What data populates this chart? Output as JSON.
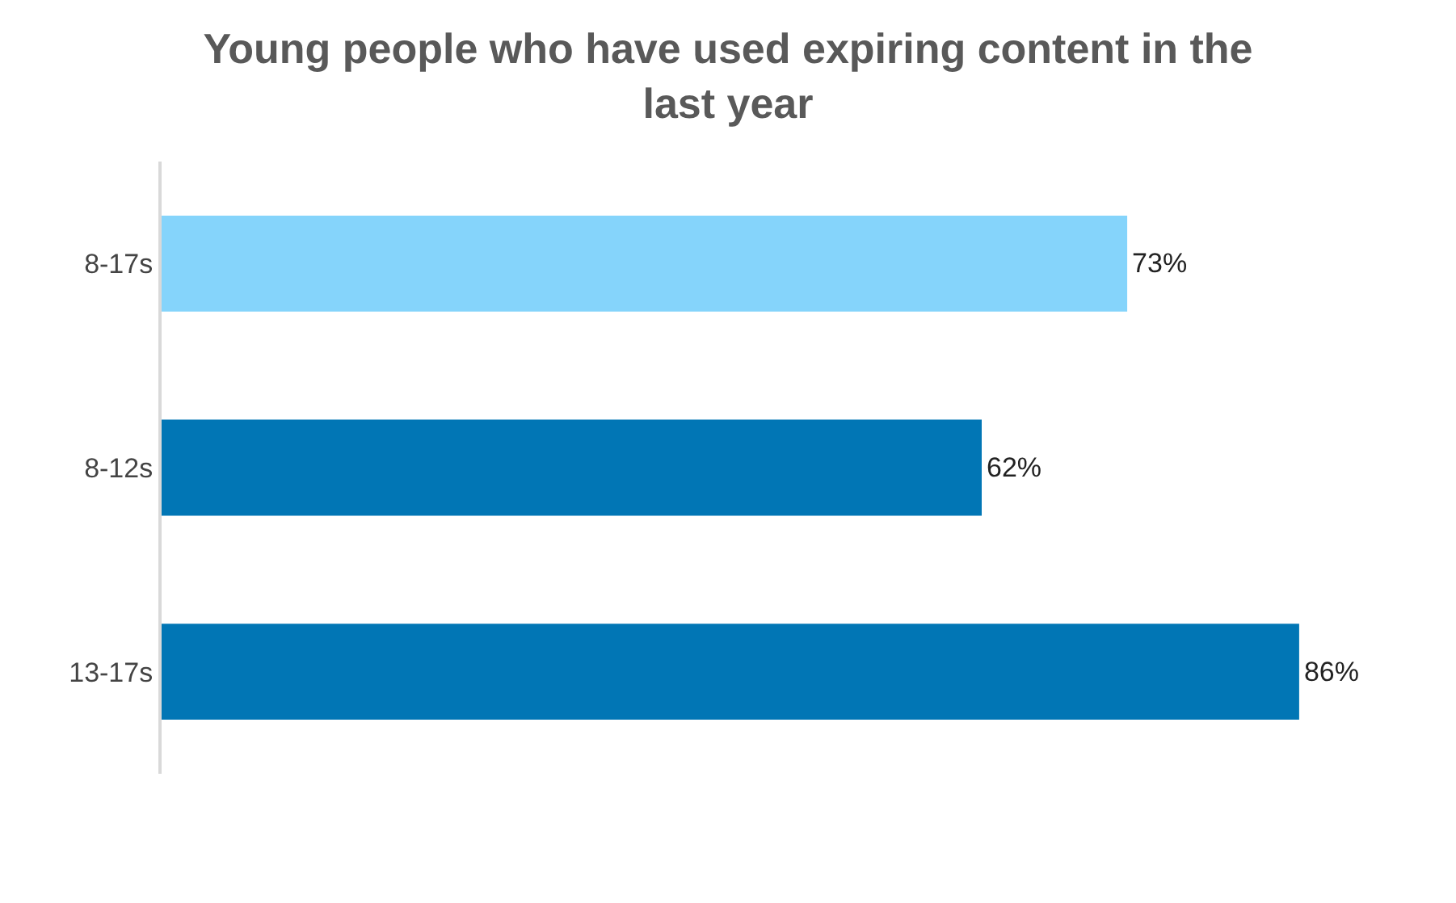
{
  "chart_data": {
    "type": "bar",
    "orientation": "horizontal",
    "title": "Young people who have used expiring content in the last year",
    "categories": [
      "8-17s",
      "8-12s",
      "13-17s"
    ],
    "values": [
      73,
      62,
      86
    ],
    "colors": [
      "#85d4fb",
      "#0176b5",
      "#0176b5"
    ],
    "value_labels": [
      "73%",
      "62%",
      "86%"
    ],
    "grid": false,
    "legend": false
  }
}
